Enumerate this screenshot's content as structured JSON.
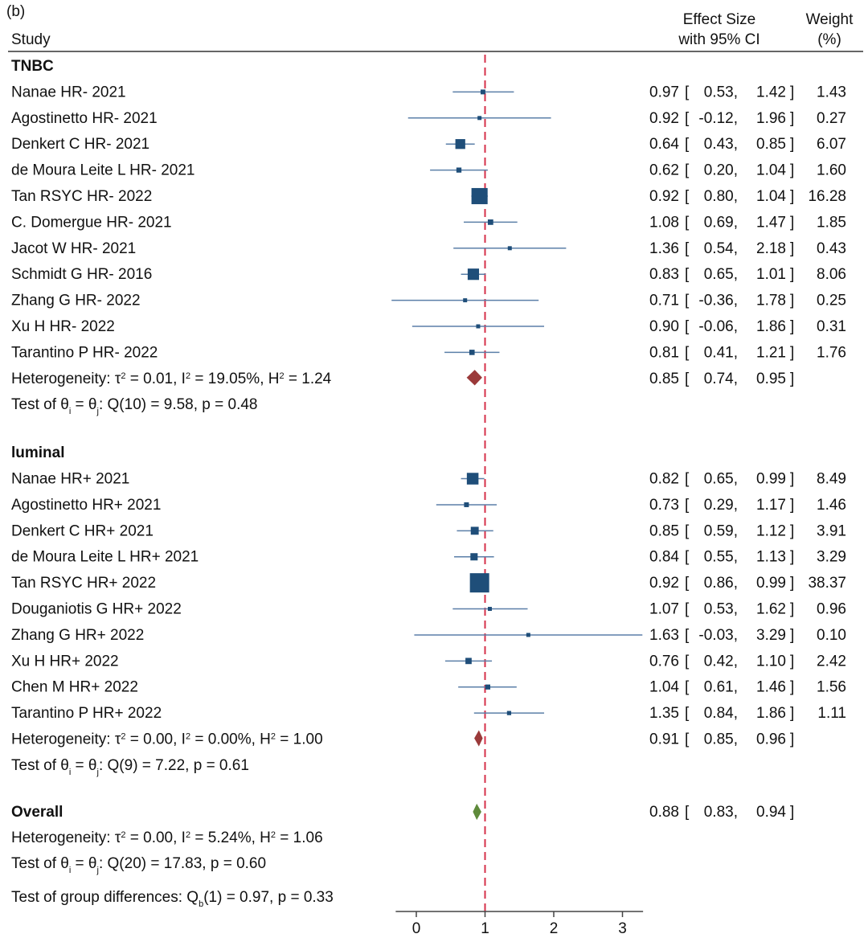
{
  "panel_label": "(b)",
  "header": {
    "study": "Study",
    "effect_line1": "Effect Size",
    "effect_line2": "with 95% CI",
    "weight_line1": "Weight",
    "weight_line2": "(%)"
  },
  "chart_data": {
    "type": "forest",
    "reference_line": 1,
    "xlim": [
      -0.3,
      3.3
    ],
    "xticks": [
      0,
      1,
      2,
      3
    ],
    "groups": [
      {
        "name": "TNBC",
        "studies": [
          {
            "label": "Nanae HR- 2021",
            "es": 0.97,
            "lo": 0.53,
            "hi": 1.42,
            "es_txt": "0.97",
            "lo_txt": "0.53",
            "hi_txt": "1.42",
            "weight": 1.43,
            "weight_txt": "1.43"
          },
          {
            "label": "Agostinetto HR- 2021",
            "es": 0.92,
            "lo": -0.12,
            "hi": 1.96,
            "es_txt": "0.92",
            "lo_txt": "-0.12",
            "hi_txt": "1.96",
            "weight": 0.27,
            "weight_txt": "0.27"
          },
          {
            "label": "Denkert C HR- 2021",
            "es": 0.64,
            "lo": 0.43,
            "hi": 0.85,
            "es_txt": "0.64",
            "lo_txt": "0.43",
            "hi_txt": "0.85",
            "weight": 6.07,
            "weight_txt": "6.07"
          },
          {
            "label": "de Moura Leite L HR- 2021",
            "es": 0.62,
            "lo": 0.2,
            "hi": 1.04,
            "es_txt": "0.62",
            "lo_txt": "0.20",
            "hi_txt": "1.04",
            "weight": 1.6,
            "weight_txt": "1.60"
          },
          {
            "label": "Tan RSYC HR- 2022",
            "es": 0.92,
            "lo": 0.8,
            "hi": 1.04,
            "es_txt": "0.92",
            "lo_txt": "0.80",
            "hi_txt": "1.04",
            "weight": 16.28,
            "weight_txt": "16.28"
          },
          {
            "label": "C. Domergue HR- 2021",
            "es": 1.08,
            "lo": 0.69,
            "hi": 1.47,
            "es_txt": "1.08",
            "lo_txt": "0.69",
            "hi_txt": "1.47",
            "weight": 1.85,
            "weight_txt": "1.85"
          },
          {
            "label": "Jacot W HR- 2021",
            "es": 1.36,
            "lo": 0.54,
            "hi": 2.18,
            "es_txt": "1.36",
            "lo_txt": "0.54",
            "hi_txt": "2.18",
            "weight": 0.43,
            "weight_txt": "0.43"
          },
          {
            "label": "Schmidt G HR- 2016",
            "es": 0.83,
            "lo": 0.65,
            "hi": 1.01,
            "es_txt": "0.83",
            "lo_txt": "0.65",
            "hi_txt": "1.01",
            "weight": 8.06,
            "weight_txt": "8.06"
          },
          {
            "label": "Zhang G HR- 2022",
            "es": 0.71,
            "lo": -0.36,
            "hi": 1.78,
            "es_txt": "0.71",
            "lo_txt": "-0.36",
            "hi_txt": "1.78",
            "weight": 0.25,
            "weight_txt": "0.25"
          },
          {
            "label": "Xu H HR- 2022",
            "es": 0.9,
            "lo": -0.06,
            "hi": 1.86,
            "es_txt": "0.90",
            "lo_txt": "-0.06",
            "hi_txt": "1.86",
            "weight": 0.31,
            "weight_txt": "0.31"
          },
          {
            "label": "Tarantino P HR- 2022",
            "es": 0.81,
            "lo": 0.41,
            "hi": 1.21,
            "es_txt": "0.81",
            "lo_txt": "0.41",
            "hi_txt": "1.21",
            "weight": 1.76,
            "weight_txt": "1.76"
          }
        ],
        "pooled": {
          "es": 0.85,
          "lo": 0.74,
          "hi": 0.95,
          "es_txt": "0.85",
          "lo_txt": "0.74",
          "hi_txt": "0.95",
          "color": "#9b3a3a"
        },
        "heterogeneity": {
          "tau2": "0.01",
          "I2": "19.05%",
          "H2": "1.24"
        },
        "test": {
          "df": "10",
          "Q": "9.58",
          "p": "0.48"
        }
      },
      {
        "name": "luminal",
        "studies": [
          {
            "label": "Nanae HR+ 2021",
            "es": 0.82,
            "lo": 0.65,
            "hi": 0.99,
            "es_txt": "0.82",
            "lo_txt": "0.65",
            "hi_txt": "0.99",
            "weight": 8.49,
            "weight_txt": "8.49"
          },
          {
            "label": "Agostinetto HR+ 2021",
            "es": 0.73,
            "lo": 0.29,
            "hi": 1.17,
            "es_txt": "0.73",
            "lo_txt": "0.29",
            "hi_txt": "1.17",
            "weight": 1.46,
            "weight_txt": "1.46"
          },
          {
            "label": "Denkert C HR+ 2021",
            "es": 0.85,
            "lo": 0.59,
            "hi": 1.12,
            "es_txt": "0.85",
            "lo_txt": "0.59",
            "hi_txt": "1.12",
            "weight": 3.91,
            "weight_txt": "3.91"
          },
          {
            "label": "de Moura Leite L HR+ 2021",
            "es": 0.84,
            "lo": 0.55,
            "hi": 1.13,
            "es_txt": "0.84",
            "lo_txt": "0.55",
            "hi_txt": "1.13",
            "weight": 3.29,
            "weight_txt": "3.29"
          },
          {
            "label": "Tan RSYC HR+ 2022",
            "es": 0.92,
            "lo": 0.86,
            "hi": 0.99,
            "es_txt": "0.92",
            "lo_txt": "0.86",
            "hi_txt": "0.99",
            "weight": 38.37,
            "weight_txt": "38.37"
          },
          {
            "label": "Douganiotis G HR+ 2022",
            "es": 1.07,
            "lo": 0.53,
            "hi": 1.62,
            "es_txt": "1.07",
            "lo_txt": "0.53",
            "hi_txt": "1.62",
            "weight": 0.96,
            "weight_txt": "0.96"
          },
          {
            "label": "Zhang G HR+ 2022",
            "es": 1.63,
            "lo": -0.03,
            "hi": 3.29,
            "es_txt": "1.63",
            "lo_txt": "-0.03",
            "hi_txt": "3.29",
            "weight": 0.1,
            "weight_txt": "0.10"
          },
          {
            "label": "Xu H HR+ 2022",
            "es": 0.76,
            "lo": 0.42,
            "hi": 1.1,
            "es_txt": "0.76",
            "lo_txt": "0.42",
            "hi_txt": "1.10",
            "weight": 2.42,
            "weight_txt": "2.42"
          },
          {
            "label": "Chen M HR+ 2022",
            "es": 1.04,
            "lo": 0.61,
            "hi": 1.46,
            "es_txt": "1.04",
            "lo_txt": "0.61",
            "hi_txt": "1.46",
            "weight": 1.56,
            "weight_txt": "1.56"
          },
          {
            "label": "Tarantino P HR+ 2022",
            "es": 1.35,
            "lo": 0.84,
            "hi": 1.86,
            "es_txt": "1.35",
            "lo_txt": "0.84",
            "hi_txt": "1.86",
            "weight": 1.11,
            "weight_txt": "1.11"
          }
        ],
        "pooled": {
          "es": 0.91,
          "lo": 0.85,
          "hi": 0.96,
          "es_txt": "0.91",
          "lo_txt": "0.85",
          "hi_txt": "0.96",
          "color": "#9b3a3a"
        },
        "heterogeneity": {
          "tau2": "0.00",
          "I2": "0.00%",
          "H2": "1.00"
        },
        "test": {
          "df": "9",
          "Q": "7.22",
          "p": "0.61"
        }
      }
    ],
    "overall": {
      "name": "Overall",
      "es": 0.88,
      "lo": 0.83,
      "hi": 0.94,
      "es_txt": "0.88",
      "lo_txt": "0.83",
      "hi_txt": "0.94",
      "color": "#5e8a3a",
      "heterogeneity": {
        "tau2": "0.00",
        "I2": "5.24%",
        "H2": "1.06"
      },
      "test": {
        "df": "20",
        "Q": "17.83",
        "p": "0.60"
      }
    },
    "group_test": {
      "df": "1",
      "Q": "0.97",
      "p": "0.33"
    },
    "colors": {
      "marker": "#1f4e79",
      "ci_line": "#5b7fa8",
      "reference": "#d6304a"
    }
  }
}
